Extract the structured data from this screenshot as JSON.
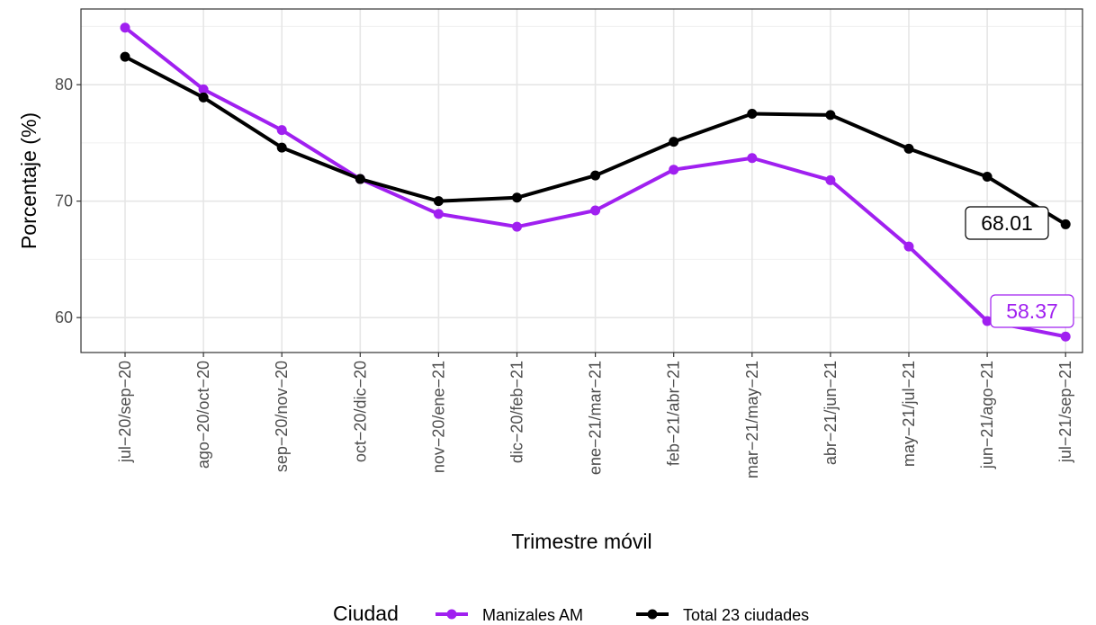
{
  "chart_data": {
    "type": "line",
    "title": "",
    "xlabel": "Trimestre móvil",
    "ylabel": "Porcentaje (%)",
    "categories": [
      "jul−20/sep−20",
      "ago−20/oct−20",
      "sep−20/nov−20",
      "oct−20/dic−20",
      "nov−20/ene−21",
      "dic−20/feb−21",
      "ene−21/mar−21",
      "feb−21/abr−21",
      "mar−21/may−21",
      "abr−21/jun−21",
      "may−21/jul−21",
      "jun−21/ago−21",
      "jul−21/sep−21"
    ],
    "ylim": [
      57,
      86.5
    ],
    "yticks": [
      60,
      70,
      80
    ],
    "ytick_labels": [
      "60",
      "70",
      "80"
    ],
    "grid": true,
    "legend": {
      "title": "Ciudad",
      "position": "bottom"
    },
    "series": [
      {
        "name": "Manizales AM",
        "color": "#A020F0",
        "values": [
          84.9,
          79.6,
          76.1,
          71.9,
          68.9,
          67.8,
          69.2,
          72.7,
          73.7,
          71.8,
          66.1,
          59.7,
          58.37
        ],
        "end_label": "58.37"
      },
      {
        "name": "Total 23 ciudades",
        "color": "#000000",
        "values": [
          82.4,
          78.9,
          74.6,
          71.9,
          70.0,
          70.3,
          72.2,
          75.1,
          77.5,
          77.4,
          74.5,
          72.1,
          68.01
        ],
        "end_label": "68.01"
      }
    ]
  }
}
